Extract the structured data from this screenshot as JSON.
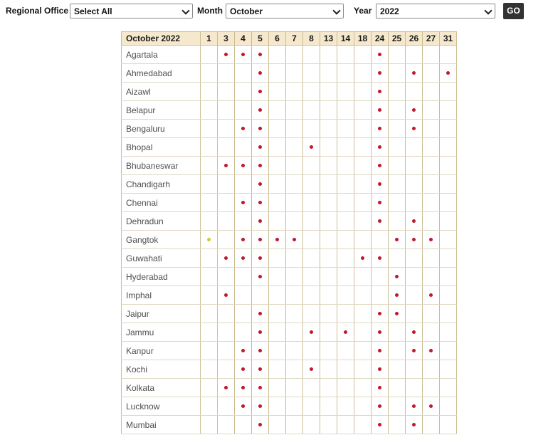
{
  "filters": {
    "regional_office_label": "Regional Office",
    "regional_office_value": "Select All",
    "month_label": "Month",
    "month_value": "October",
    "year_label": "Year",
    "year_value": "2022",
    "go_label": "GO"
  },
  "colors": {
    "header_bg": "#f6e8cd",
    "grid_border": "#cbbe94",
    "red_dot": "#c2182b",
    "yellow_dot": "#d3ca2c",
    "go_button_bg": "#333333"
  },
  "calendar": {
    "title": "October 2022",
    "columns": [
      "1",
      "3",
      "4",
      "5",
      "6",
      "7",
      "8",
      "13",
      "14",
      "18",
      "24",
      "25",
      "26",
      "27",
      "31"
    ],
    "rows": [
      {
        "city": "Agartala",
        "red": [
          "3",
          "4",
          "5",
          "24"
        ]
      },
      {
        "city": "Ahmedabad",
        "red": [
          "5",
          "24",
          "26",
          "31"
        ]
      },
      {
        "city": "Aizawl",
        "red": [
          "5",
          "24"
        ]
      },
      {
        "city": "Belapur",
        "red": [
          "5",
          "24",
          "26"
        ]
      },
      {
        "city": "Bengaluru",
        "red": [
          "4",
          "5",
          "24",
          "26"
        ]
      },
      {
        "city": "Bhopal",
        "red": [
          "5",
          "8",
          "24"
        ]
      },
      {
        "city": "Bhubaneswar",
        "red": [
          "3",
          "4",
          "5",
          "24"
        ]
      },
      {
        "city": "Chandigarh",
        "red": [
          "5",
          "24"
        ]
      },
      {
        "city": "Chennai",
        "red": [
          "4",
          "5",
          "24"
        ]
      },
      {
        "city": "Dehradun",
        "red": [
          "5",
          "24",
          "26"
        ]
      },
      {
        "city": "Gangtok",
        "red": [
          "4",
          "5",
          "6",
          "7",
          "25",
          "26",
          "27"
        ],
        "yellow": [
          "1"
        ]
      },
      {
        "city": "Guwahati",
        "red": [
          "3",
          "4",
          "5",
          "18",
          "24"
        ]
      },
      {
        "city": "Hyderabad",
        "red": [
          "5",
          "25"
        ]
      },
      {
        "city": "Imphal",
        "red": [
          "3",
          "25",
          "27"
        ]
      },
      {
        "city": "Jaipur",
        "red": [
          "5",
          "24",
          "25"
        ]
      },
      {
        "city": "Jammu",
        "red": [
          "5",
          "8",
          "14",
          "24",
          "26"
        ]
      },
      {
        "city": "Kanpur",
        "red": [
          "4",
          "5",
          "24",
          "26",
          "27"
        ]
      },
      {
        "city": "Kochi",
        "red": [
          "4",
          "5",
          "8",
          "24"
        ]
      },
      {
        "city": "Kolkata",
        "red": [
          "3",
          "4",
          "5",
          "24"
        ]
      },
      {
        "city": "Lucknow",
        "red": [
          "4",
          "5",
          "24",
          "26",
          "27"
        ]
      },
      {
        "city": "Mumbai",
        "red": [
          "5",
          "24",
          "26"
        ]
      }
    ]
  }
}
